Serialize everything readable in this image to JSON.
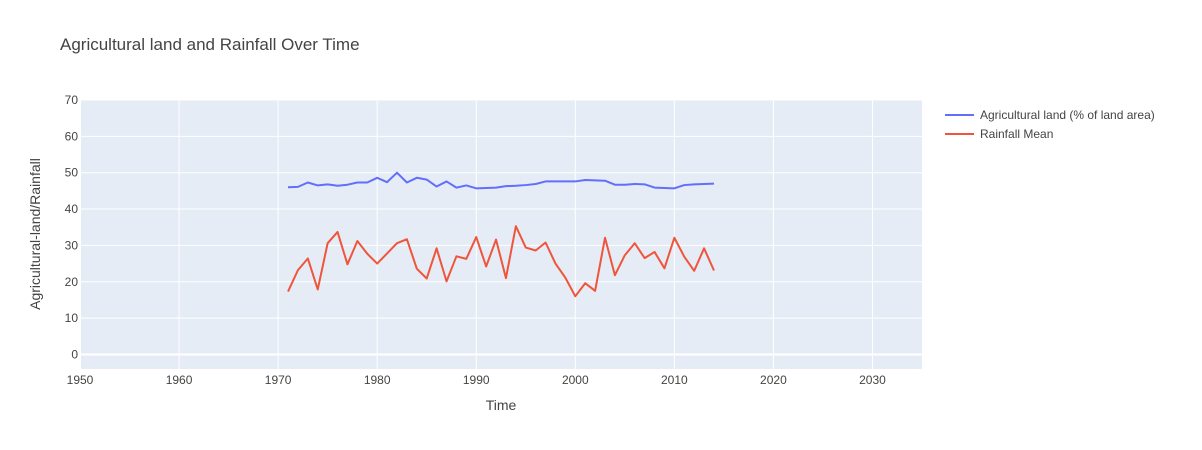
{
  "chart_data": {
    "type": "line",
    "title": "Agricultural land and Rainfall Over Time",
    "xlabel": "Time",
    "ylabel": "Agricultural-land/Rainfall",
    "xlim": [
      1950,
      2035
    ],
    "ylim": [
      -4,
      70
    ],
    "x_ticks": [
      1950,
      1960,
      1970,
      1980,
      1990,
      2000,
      2010,
      2020,
      2030
    ],
    "y_ticks": [
      0,
      10,
      20,
      30,
      40,
      50,
      60,
      70
    ],
    "grid": true,
    "legend_position": "top-right, outside plot",
    "x": [
      1971,
      1972,
      1973,
      1974,
      1975,
      1976,
      1977,
      1978,
      1979,
      1980,
      1981,
      1982,
      1983,
      1984,
      1985,
      1986,
      1987,
      1988,
      1989,
      1990,
      1991,
      1992,
      1993,
      1994,
      1995,
      1996,
      1997,
      1998,
      1999,
      2000,
      2001,
      2002,
      2003,
      2004,
      2005,
      2006,
      2007,
      2008,
      2009,
      2010,
      2011,
      2012,
      2013,
      2014
    ],
    "series": [
      {
        "name": "Agricultural land (% of land area)",
        "color": "#636efa",
        "values": [
          46.0,
          46.1,
          47.3,
          46.5,
          46.8,
          46.4,
          46.7,
          47.3,
          47.3,
          48.6,
          47.4,
          50.0,
          47.3,
          48.6,
          48.1,
          46.2,
          47.6,
          45.9,
          46.5,
          45.7,
          45.8,
          45.9,
          46.3,
          46.4,
          46.6,
          46.9,
          47.6,
          47.6,
          47.6,
          47.6,
          48.0,
          47.9,
          47.8,
          46.7,
          46.7,
          46.9,
          46.8,
          45.9,
          45.8,
          45.7,
          46.6,
          46.8,
          46.9,
          47.0
        ]
      },
      {
        "name": "Rainfall Mean",
        "color": "#ef553b",
        "values": [
          17.3,
          23.2,
          26.4,
          17.9,
          30.6,
          33.7,
          24.8,
          31.2,
          27.7,
          25.0,
          27.8,
          30.6,
          31.7,
          23.6,
          20.9,
          29.2,
          20.1,
          27.0,
          26.3,
          32.3,
          24.2,
          31.6,
          21.0,
          35.3,
          29.4,
          28.6,
          30.8,
          25.0,
          21.1,
          16.0,
          19.6,
          17.5,
          32.1,
          21.8,
          27.3,
          30.6,
          26.5,
          28.2,
          23.7,
          32.1,
          26.9,
          23.0,
          29.2,
          23.1
        ]
      }
    ]
  }
}
